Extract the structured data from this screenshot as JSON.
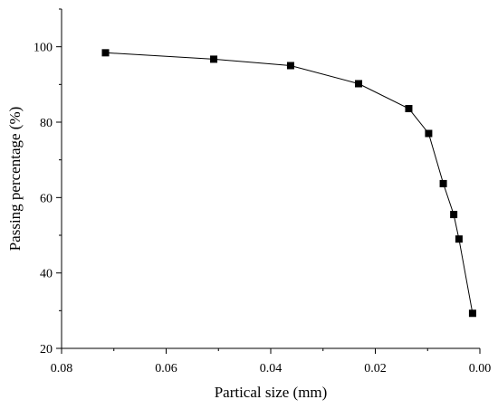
{
  "chart_data": {
    "type": "line",
    "title": "",
    "xlabel": "Partical size (mm)",
    "ylabel": "Passing percentage (%)",
    "xlim": [
      0.08,
      0.0
    ],
    "ylim": [
      20,
      110
    ],
    "x_reversed": true,
    "grid": false,
    "marker": "filled-square",
    "x_ticks": [
      {
        "value": 0.08,
        "label": "0.08"
      },
      {
        "value": 0.06,
        "label": "0.06"
      },
      {
        "value": 0.04,
        "label": "0.04"
      },
      {
        "value": 0.02,
        "label": "0.02"
      },
      {
        "value": 0.0,
        "label": "0.00"
      }
    ],
    "y_ticks": [
      {
        "value": 20,
        "label": "20"
      },
      {
        "value": 40,
        "label": "40"
      },
      {
        "value": 60,
        "label": "60"
      },
      {
        "value": 80,
        "label": "80"
      },
      {
        "value": 100,
        "label": "100"
      }
    ],
    "series": [
      {
        "points": [
          {
            "x": 0.0716,
            "y": 98.4
          },
          {
            "x": 0.0509,
            "y": 96.7
          },
          {
            "x": 0.0362,
            "y": 95.0
          },
          {
            "x": 0.0232,
            "y": 90.2
          },
          {
            "x": 0.0136,
            "y": 83.6
          },
          {
            "x": 0.0098,
            "y": 77.0
          },
          {
            "x": 0.007,
            "y": 63.7
          },
          {
            "x": 0.005,
            "y": 55.5
          },
          {
            "x": 0.004,
            "y": 49.0
          },
          {
            "x": 0.0014,
            "y": 29.3
          }
        ]
      }
    ]
  }
}
